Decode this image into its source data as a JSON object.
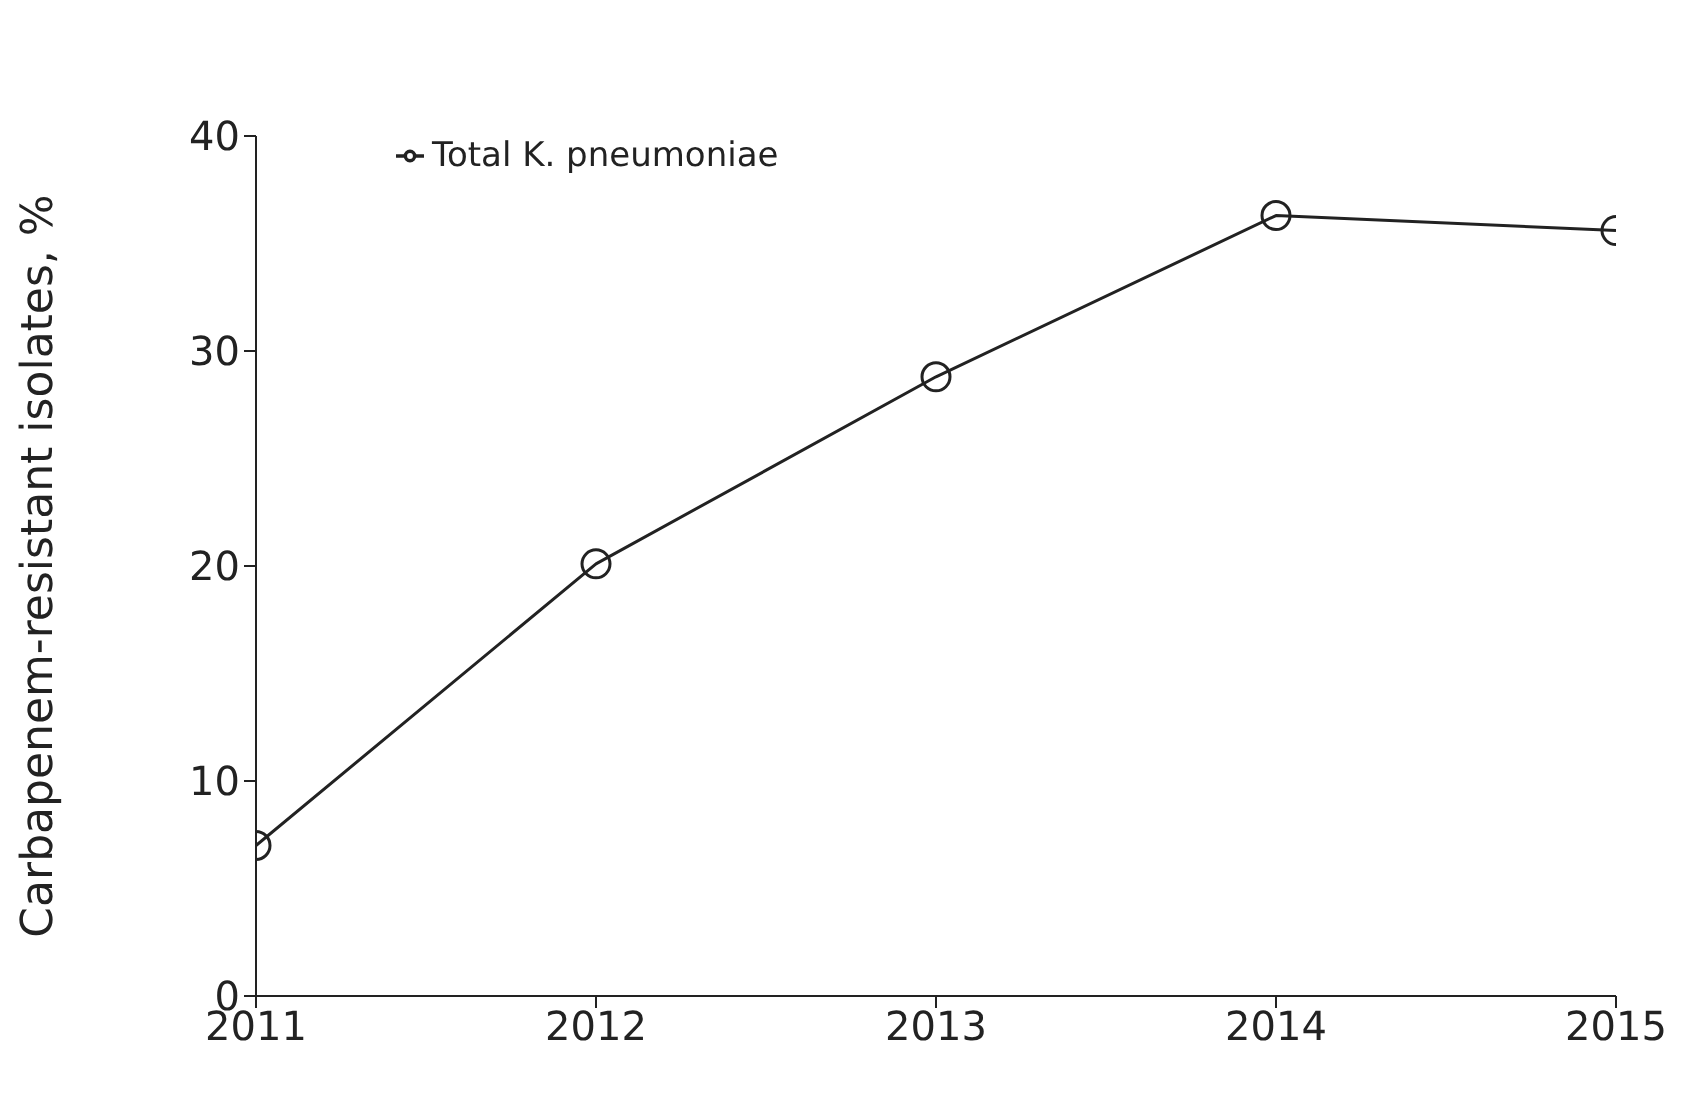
{
  "chart_data": {
    "type": "line",
    "ylabel": "Carbapenem-resistant isolates, %",
    "x": [
      2011,
      2012,
      2013,
      2014,
      2015
    ],
    "series": [
      {
        "name": "Total K. pneumoniae",
        "color": "#222222",
        "values": [
          7,
          20.1,
          28.8,
          36.3,
          35.6
        ]
      }
    ],
    "xlim": [
      2011,
      2015
    ],
    "xticks": [
      2011,
      2012,
      2013,
      2014,
      2015
    ],
    "ylim": [
      0,
      40
    ],
    "yticks": [
      0,
      10,
      20,
      30,
      40
    ],
    "grid": false,
    "legend": "top left",
    "marker": "circle",
    "line_style": "solid"
  }
}
